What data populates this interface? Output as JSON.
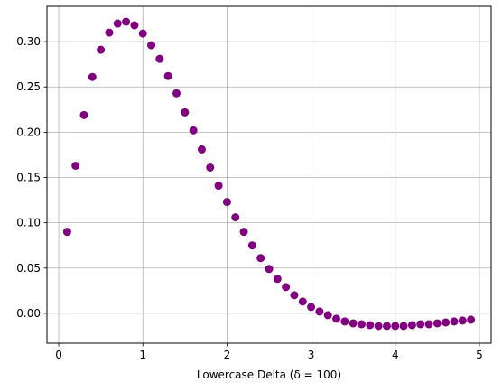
{
  "chart_data": {
    "type": "scatter",
    "title": "",
    "xlabel": "Lowercase Delta (δ = 100)",
    "ylabel": "",
    "xlim": [
      -0.14,
      5.14
    ],
    "ylim": [
      -0.033,
      0.339
    ],
    "xticks": [
      0,
      1,
      2,
      3,
      4,
      5
    ],
    "xtick_labels": [
      "0",
      "1",
      "2",
      "3",
      "4",
      "5"
    ],
    "yticks": [
      0.0,
      0.05,
      0.1,
      0.15,
      0.2,
      0.25,
      0.3
    ],
    "ytick_labels": [
      "0.00",
      "0.05",
      "0.10",
      "0.15",
      "0.20",
      "0.25",
      "0.30"
    ],
    "grid": true,
    "marker_color": "#800080",
    "grid_color": "#b0b0b0",
    "series": [
      {
        "x": [
          0.1,
          0.2,
          0.3,
          0.4,
          0.5,
          0.6,
          0.7,
          0.8,
          0.9,
          1.0,
          1.1,
          1.2,
          1.3,
          1.4,
          1.5,
          1.6,
          1.7,
          1.8,
          1.9,
          2.0,
          2.1,
          2.2,
          2.3,
          2.4,
          2.5,
          2.6,
          2.7,
          2.8,
          2.9,
          3.0,
          3.1,
          3.2,
          3.3,
          3.4,
          3.5,
          3.6,
          3.7,
          3.8,
          3.9,
          4.0,
          4.1,
          4.2,
          4.3,
          4.4,
          4.5,
          4.6,
          4.7,
          4.8,
          4.9
        ],
        "y": [
          0.09,
          0.163,
          0.219,
          0.261,
          0.291,
          0.31,
          0.32,
          0.322,
          0.318,
          0.309,
          0.296,
          0.281,
          0.262,
          0.243,
          0.222,
          0.202,
          0.181,
          0.161,
          0.141,
          0.123,
          0.106,
          0.09,
          0.075,
          0.061,
          0.049,
          0.038,
          0.029,
          0.02,
          0.013,
          0.007,
          0.002,
          -0.002,
          -0.006,
          -0.009,
          -0.011,
          -0.012,
          -0.013,
          -0.014,
          -0.014,
          -0.014,
          -0.014,
          -0.013,
          -0.012,
          -0.012,
          -0.011,
          -0.01,
          -0.009,
          -0.008,
          -0.007
        ]
      }
    ]
  }
}
